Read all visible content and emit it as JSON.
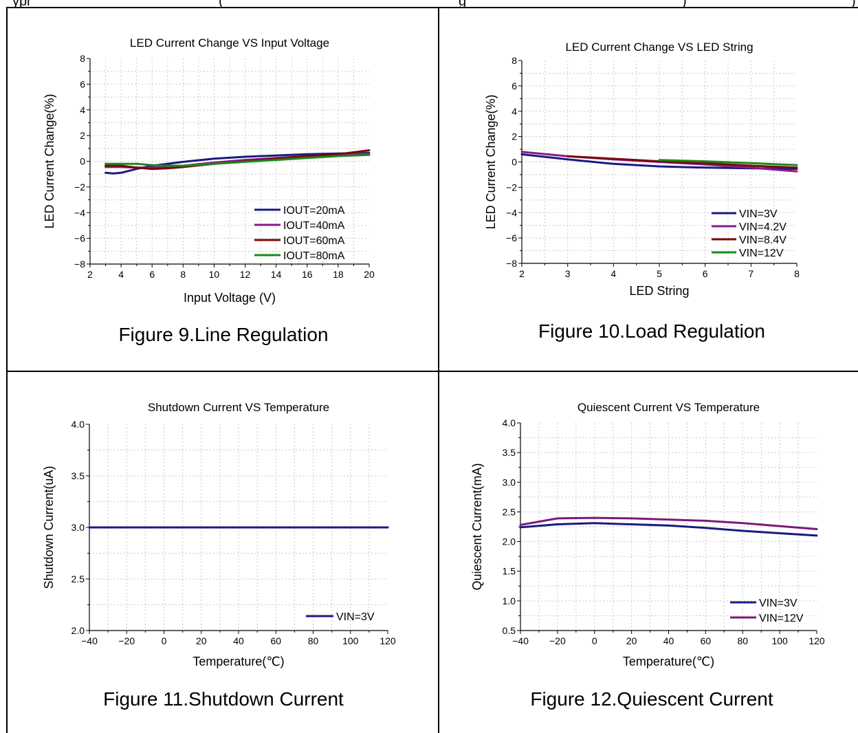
{
  "header": {
    "left": "ypi",
    "middle": "(",
    "middle2": "g",
    "right": ")",
    "right2": ")"
  },
  "captions": [
    "Figure 9.Line Regulation",
    "Figure 10.Load Regulation",
    "Figure 11.Shutdown Current",
    "Figure 12.Quiescent Current"
  ],
  "chart_data": [
    {
      "type": "line",
      "title": "LED Current Change VS Input Voltage",
      "xlabel": "Input Voltage (V)",
      "ylabel": "LED Current Change(%)",
      "xlim": [
        2,
        20
      ],
      "ylim": [
        -8,
        8
      ],
      "xticks": [
        2,
        4,
        6,
        8,
        10,
        12,
        14,
        16,
        18,
        20
      ],
      "yticks": [
        -8,
        -6,
        -4,
        -2,
        0,
        2,
        4,
        6,
        8
      ],
      "grid": true,
      "legend_position": "bottom-right",
      "series": [
        {
          "name": "IOUT=20mA",
          "color": "#1a1a80",
          "x": [
            3,
            3.5,
            4,
            5,
            6,
            7,
            8,
            10,
            12,
            14,
            16,
            18,
            20
          ],
          "y": [
            -0.9,
            -0.95,
            -0.9,
            -0.6,
            -0.35,
            -0.2,
            -0.05,
            0.2,
            0.35,
            0.45,
            0.55,
            0.6,
            0.65
          ]
        },
        {
          "name": "IOUT=40mA",
          "color": "#8a1a8a",
          "x": [
            3,
            4,
            5,
            6,
            7,
            8,
            10,
            12,
            14,
            16,
            18,
            20
          ],
          "y": [
            -0.45,
            -0.45,
            -0.5,
            -0.5,
            -0.45,
            -0.35,
            -0.1,
            0.1,
            0.25,
            0.4,
            0.5,
            0.6
          ]
        },
        {
          "name": "IOUT=60mA",
          "color": "#7a0a0a",
          "x": [
            3,
            4,
            5,
            6,
            7,
            8,
            10,
            12,
            14,
            16,
            18,
            20
          ],
          "y": [
            -0.35,
            -0.35,
            -0.5,
            -0.6,
            -0.55,
            -0.45,
            -0.2,
            0.0,
            0.2,
            0.4,
            0.55,
            0.85
          ]
        },
        {
          "name": "IOUT=80mA",
          "color": "#1a8a1a",
          "x": [
            3,
            4,
            5,
            6,
            7,
            8,
            10,
            12,
            14,
            16,
            18,
            20
          ],
          "y": [
            -0.2,
            -0.2,
            -0.2,
            -0.3,
            -0.35,
            -0.35,
            -0.2,
            -0.05,
            0.1,
            0.25,
            0.4,
            0.5
          ]
        }
      ]
    },
    {
      "type": "line",
      "title": "LED Current Change VS LED String",
      "xlabel": "LED String",
      "ylabel": "LED Current Change(%)",
      "xlim": [
        2,
        8
      ],
      "ylim": [
        -8,
        8
      ],
      "xticks": [
        2,
        3,
        4,
        5,
        6,
        7,
        8
      ],
      "yticks": [
        -8,
        -6,
        -4,
        -2,
        0,
        2,
        4,
        6,
        8
      ],
      "grid": true,
      "legend_position": "bottom-right",
      "series": [
        {
          "name": "VIN=3V",
          "color": "#1a1a80",
          "x": [
            2,
            3,
            4,
            5,
            6,
            7,
            8
          ],
          "y": [
            0.6,
            0.2,
            -0.15,
            -0.35,
            -0.45,
            -0.5,
            -0.55
          ]
        },
        {
          "name": "VIN=4.2V",
          "color": "#8a1a8a",
          "x": [
            2,
            3,
            4,
            5,
            6,
            7,
            8
          ],
          "y": [
            0.8,
            0.45,
            0.2,
            0.0,
            -0.2,
            -0.45,
            -0.75
          ]
        },
        {
          "name": "VIN=8.4V",
          "color": "#7a0a0a",
          "x": [
            3,
            4,
            5,
            6,
            7,
            8
          ],
          "y": [
            0.45,
            0.25,
            0.05,
            -0.1,
            -0.3,
            -0.45
          ]
        },
        {
          "name": "VIN=12V",
          "color": "#1a8a1a",
          "x": [
            5,
            6,
            7,
            8
          ],
          "y": [
            0.15,
            0.05,
            -0.1,
            -0.25
          ]
        }
      ]
    },
    {
      "type": "line",
      "title": "Shutdown Current VS Temperature",
      "xlabel": "Temperature(℃)",
      "ylabel": "Shutdown Current(uA)",
      "xlim": [
        -40,
        120
      ],
      "ylim": [
        2.0,
        4.0
      ],
      "xticks": [
        -40,
        -20,
        0,
        20,
        40,
        60,
        80,
        100,
        120
      ],
      "yticks": [
        2.0,
        2.5,
        3.0,
        3.5,
        4.0
      ],
      "ytick_format": 1,
      "grid": true,
      "legend_position": "bottom-right",
      "series": [
        {
          "name": "VIN=3V",
          "color": "#1a1a80",
          "x": [
            -40,
            120
          ],
          "y": [
            3.0,
            3.0
          ]
        }
      ]
    },
    {
      "type": "line",
      "title": "Quiescent Current VS Temperature",
      "xlabel": "Temperature(℃)",
      "ylabel": "Quiescent Current(mA)",
      "xlim": [
        -40,
        120
      ],
      "ylim": [
        0.5,
        4.0
      ],
      "xticks": [
        -40,
        -20,
        0,
        20,
        40,
        60,
        80,
        100,
        120
      ],
      "yticks": [
        0.5,
        1.0,
        1.5,
        2.0,
        2.5,
        3.0,
        3.5,
        4.0
      ],
      "ytick_format": 1,
      "grid": true,
      "legend_position": "bottom-right",
      "series": [
        {
          "name": "VIN=3V",
          "color": "#1a1a80",
          "x": [
            -40,
            -20,
            0,
            20,
            40,
            60,
            80,
            100,
            120
          ],
          "y": [
            2.24,
            2.29,
            2.31,
            2.29,
            2.27,
            2.23,
            2.18,
            2.14,
            2.1
          ]
        },
        {
          "name": "VIN=12V",
          "color": "#7a1a7a",
          "x": [
            -40,
            -20,
            0,
            20,
            40,
            60,
            80,
            100,
            120
          ],
          "y": [
            2.28,
            2.39,
            2.4,
            2.39,
            2.37,
            2.35,
            2.31,
            2.26,
            2.21
          ]
        }
      ]
    }
  ]
}
